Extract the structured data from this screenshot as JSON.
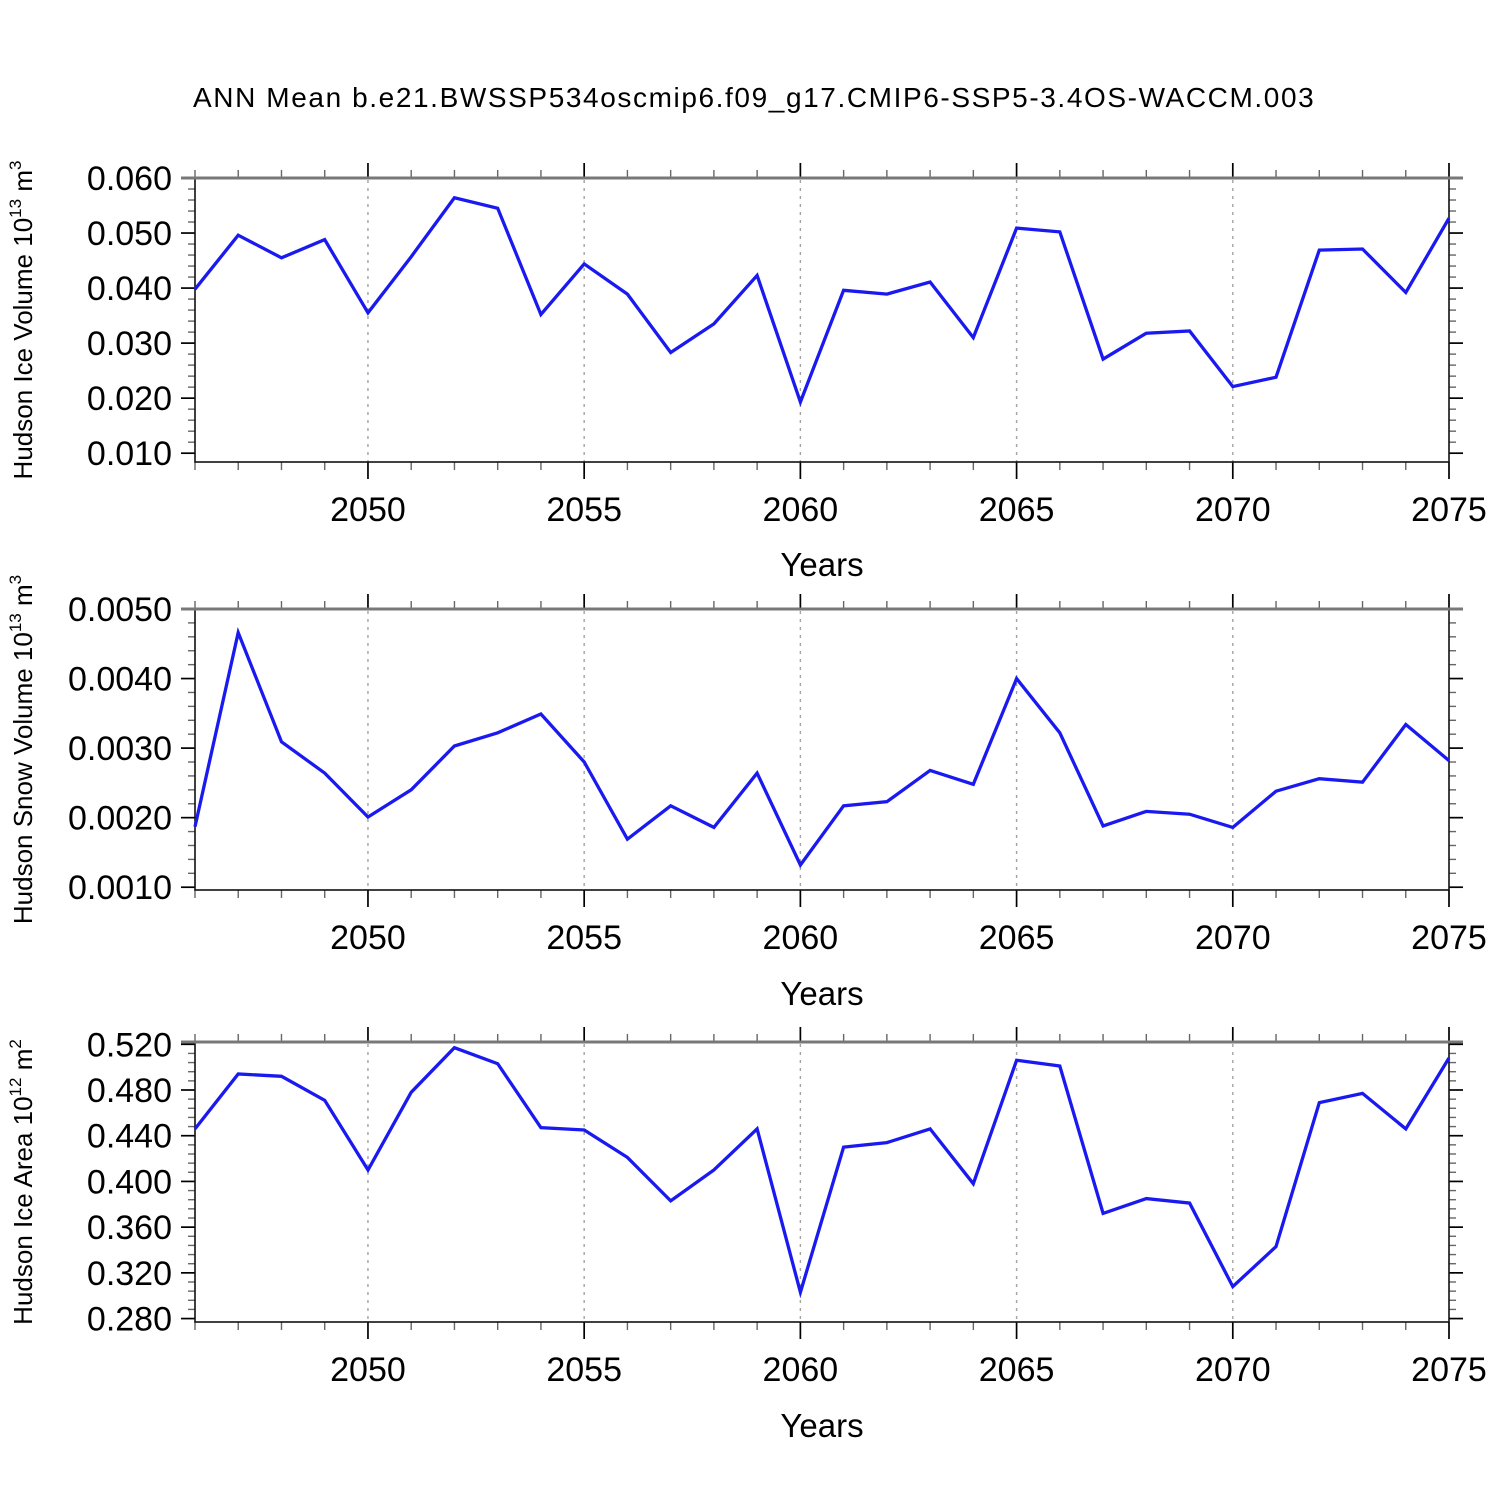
{
  "title": "ANN Mean b.e21.BWSSP534oscmip6.f09_g17.CMIP6-SSP5-3.4OS-WACCM.003",
  "line_color": "#1a1af0",
  "grid_color": "#a3a3a3",
  "frame_color": "#111111",
  "frame_top_color": "#787878",
  "minor_tick_color": "#666666",
  "major_tick_color": "#000000",
  "chart_data": [
    {
      "type": "line",
      "id": "ice-volume",
      "ylabel": "Hudson Ice Volume 10¹³ m³",
      "ylabel_parts": [
        {
          "t": "Hudson Ice Volume 10",
          "sup": false
        },
        {
          "t": "13",
          "sup": true
        },
        {
          "t": " m",
          "sup": false
        },
        {
          "t": "3",
          "sup": true
        }
      ],
      "xlabel": "Years",
      "x": [
        2046,
        2047,
        2048,
        2049,
        2050,
        2051,
        2052,
        2053,
        2054,
        2055,
        2056,
        2057,
        2058,
        2059,
        2060,
        2061,
        2062,
        2063,
        2064,
        2065,
        2066,
        2067,
        2068,
        2069,
        2070,
        2071,
        2072,
        2073,
        2074,
        2075
      ],
      "values": [
        0.0398,
        0.0496,
        0.0455,
        0.0488,
        0.0355,
        0.0457,
        0.0564,
        0.0545,
        0.0352,
        0.0444,
        0.0389,
        0.0283,
        0.0335,
        0.0423,
        0.0193,
        0.0396,
        0.0389,
        0.0411,
        0.031,
        0.0509,
        0.0502,
        0.0271,
        0.0318,
        0.0322,
        0.0221,
        0.0238,
        0.0469,
        0.0471,
        0.0392,
        0.0527
      ],
      "xlim": [
        2046,
        2075
      ],
      "ylim": [
        0.0084,
        0.06
      ],
      "xticks": [
        2050,
        2055,
        2060,
        2065,
        2070,
        2075
      ],
      "xtick_labels": [
        "2050",
        "2055",
        "2060",
        "2065",
        "2070",
        "2075"
      ],
      "x_minor_step": 1,
      "grid_x": [
        2050,
        2055,
        2060,
        2065,
        2070
      ],
      "yticks": [
        0.01,
        0.02,
        0.03,
        0.04,
        0.05,
        0.06
      ],
      "ytick_labels": [
        "0.010",
        "0.020",
        "0.030",
        "0.040",
        "0.050",
        "0.060"
      ],
      "y_minor_step": 0.002
    },
    {
      "type": "line",
      "id": "snow-volume",
      "ylabel": "Hudson Snow Volume 10¹³ m³",
      "ylabel_parts": [
        {
          "t": "Hudson Snow Volume 10",
          "sup": false
        },
        {
          "t": "13",
          "sup": true
        },
        {
          "t": " m",
          "sup": false
        },
        {
          "t": "3",
          "sup": true
        }
      ],
      "xlabel": "Years",
      "x": [
        2046,
        2047,
        2048,
        2049,
        2050,
        2051,
        2052,
        2053,
        2054,
        2055,
        2056,
        2057,
        2058,
        2059,
        2060,
        2061,
        2062,
        2063,
        2064,
        2065,
        2066,
        2067,
        2068,
        2069,
        2070,
        2071,
        2072,
        2073,
        2074,
        2075
      ],
      "values": [
        0.00187,
        0.00466,
        0.00309,
        0.00264,
        0.00201,
        0.0024,
        0.00303,
        0.00322,
        0.00349,
        0.0028,
        0.00169,
        0.00217,
        0.00186,
        0.00264,
        0.00132,
        0.00217,
        0.00223,
        0.00268,
        0.00248,
        0.004,
        0.00322,
        0.00188,
        0.00209,
        0.00205,
        0.00186,
        0.00238,
        0.00256,
        0.00251,
        0.00334,
        0.00282
      ],
      "xlim": [
        2046,
        2075
      ],
      "ylim": [
        0.00096,
        0.005
      ],
      "xticks": [
        2050,
        2055,
        2060,
        2065,
        2070,
        2075
      ],
      "xtick_labels": [
        "2050",
        "2055",
        "2060",
        "2065",
        "2070",
        "2075"
      ],
      "x_minor_step": 1,
      "grid_x": [
        2050,
        2055,
        2060,
        2065,
        2070
      ],
      "yticks": [
        0.001,
        0.002,
        0.003,
        0.004,
        0.005
      ],
      "ytick_labels": [
        "0.0010",
        "0.0020",
        "0.0030",
        "0.0040",
        "0.0050"
      ],
      "y_minor_step": 0.0002
    },
    {
      "type": "line",
      "id": "ice-area",
      "ylabel": "Hudson Ice Area 10¹² m²",
      "ylabel_parts": [
        {
          "t": "Hudson Ice Area 10",
          "sup": false
        },
        {
          "t": "12",
          "sup": true
        },
        {
          "t": " m",
          "sup": false
        },
        {
          "t": "2",
          "sup": true
        }
      ],
      "xlabel": "Years",
      "x": [
        2046,
        2047,
        2048,
        2049,
        2050,
        2051,
        2052,
        2053,
        2054,
        2055,
        2056,
        2057,
        2058,
        2059,
        2060,
        2061,
        2062,
        2063,
        2064,
        2065,
        2066,
        2067,
        2068,
        2069,
        2070,
        2071,
        2072,
        2073,
        2074,
        2075
      ],
      "values": [
        0.446,
        0.494,
        0.492,
        0.471,
        0.41,
        0.478,
        0.517,
        0.503,
        0.447,
        0.445,
        0.421,
        0.383,
        0.41,
        0.446,
        0.303,
        0.43,
        0.434,
        0.446,
        0.398,
        0.506,
        0.501,
        0.372,
        0.385,
        0.381,
        0.308,
        0.343,
        0.469,
        0.477,
        0.446,
        0.508
      ],
      "xlim": [
        2046,
        2075
      ],
      "ylim": [
        0.277,
        0.522
      ],
      "xticks": [
        2050,
        2055,
        2060,
        2065,
        2070,
        2075
      ],
      "xtick_labels": [
        "2050",
        "2055",
        "2060",
        "2065",
        "2070",
        "2075"
      ],
      "x_minor_step": 1,
      "grid_x": [
        2050,
        2055,
        2060,
        2065,
        2070
      ],
      "yticks": [
        0.28,
        0.32,
        0.36,
        0.4,
        0.44,
        0.48,
        0.52
      ],
      "ytick_labels": [
        "0.280",
        "0.320",
        "0.360",
        "0.400",
        "0.440",
        "0.480",
        "0.520"
      ],
      "y_minor_step": 0.008
    }
  ]
}
